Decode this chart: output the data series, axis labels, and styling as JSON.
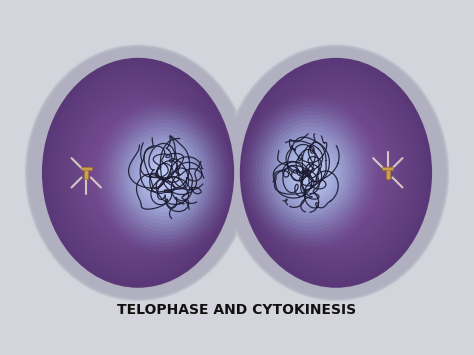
{
  "title": "TELOPHASE AND CYTOKINESIS",
  "bg_color": "#d4d4dc",
  "membrane_color": "#b0b0c0",
  "membrane_edge_color": "#c8c8d4",
  "cell_purple_outer": "#5a3878",
  "cell_purple_mid": "#6b4890",
  "cell_purple_inner": "#7a55a0",
  "nucleus_glow_blue": "#8898c8",
  "nucleus_glow_white": "#b0c0e0",
  "chromosome_color": "#1a1a30",
  "centriole_color": "#c8a050",
  "ray_color": "#ddd8c8",
  "title_fontsize": 10,
  "title_fontweight": "bold"
}
